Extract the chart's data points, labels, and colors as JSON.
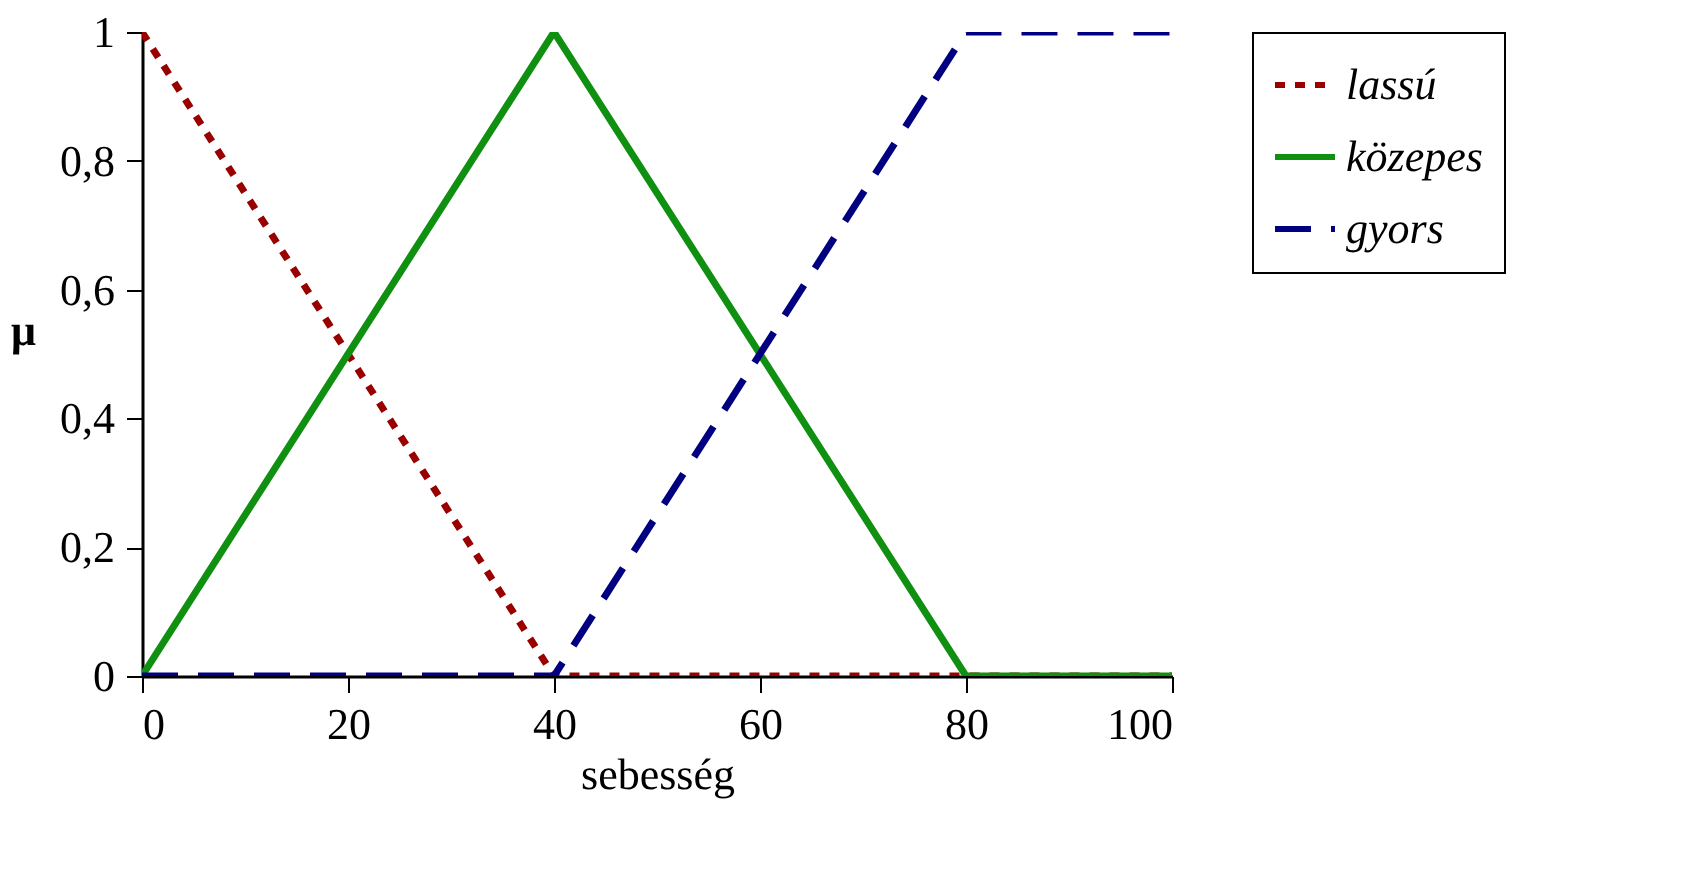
{
  "chart_data": {
    "type": "line",
    "xlabel": "sebesség",
    "ylabel": "μ",
    "xlim": [
      0,
      100
    ],
    "xticks": [
      0,
      20,
      40,
      60,
      80,
      100
    ],
    "ylim": [
      0,
      1
    ],
    "yticks": [
      0,
      {
        "value": 0.2,
        "label": "0,2"
      },
      {
        "value": 0.4,
        "label": "0,4"
      },
      {
        "value": 0.6,
        "label": "0,6"
      },
      {
        "value": 0.8,
        "label": "0,8"
      },
      1
    ],
    "grid": false,
    "legend": "right",
    "marker": "none",
    "series": [
      {
        "name": "lassú",
        "color": "#990000",
        "line_style": "dotted",
        "x": [
          0,
          40,
          100
        ],
        "values": [
          1,
          0,
          0
        ]
      },
      {
        "name": "közepes",
        "color": "#109010",
        "line_style": "solid",
        "x": [
          0,
          40,
          80,
          100
        ],
        "values": [
          0,
          1,
          0,
          0
        ]
      },
      {
        "name": "gyors",
        "color": "#000080",
        "line_style": "dashed",
        "x": [
          0,
          40,
          80,
          100
        ],
        "values": [
          0,
          0,
          1,
          1
        ]
      }
    ]
  }
}
